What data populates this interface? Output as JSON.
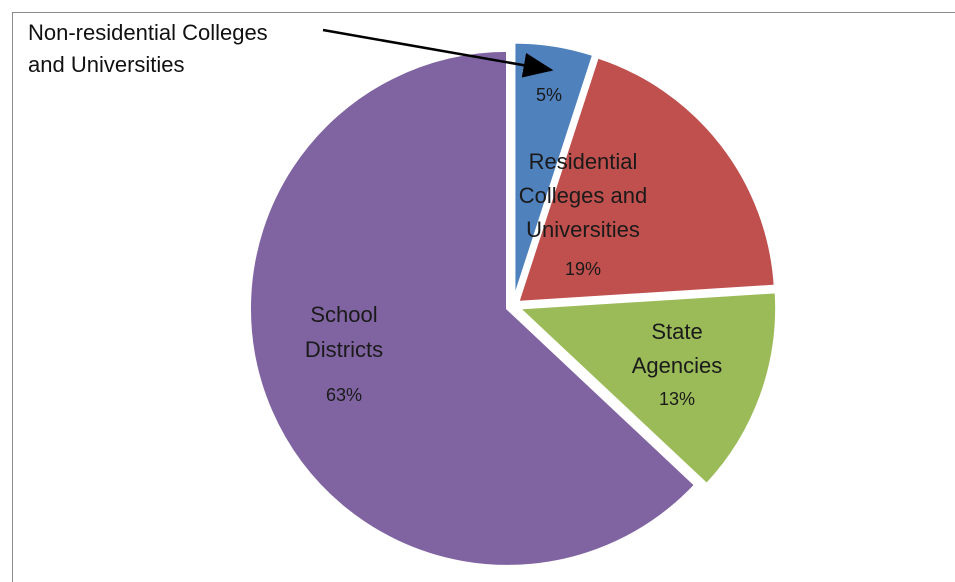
{
  "title_fragment": "",
  "chart_data": {
    "type": "pie",
    "title": "",
    "slices": [
      {
        "label_lines": [
          "Non-residential Colleges",
          "and Universities"
        ],
        "value": 5,
        "display": "5%",
        "color": "#4f81bd"
      },
      {
        "label_lines": [
          "Residential",
          "Colleges and",
          "Universities"
        ],
        "value": 19,
        "display": "19%",
        "color": "#c0504d"
      },
      {
        "label_lines": [
          "State",
          "Agencies"
        ],
        "value": 13,
        "display": "13%",
        "color": "#9bbb59"
      },
      {
        "label_lines": [
          "School",
          "Districts"
        ],
        "value": 63,
        "display": "63%",
        "color": "#8064a2"
      }
    ],
    "legend": "none"
  }
}
